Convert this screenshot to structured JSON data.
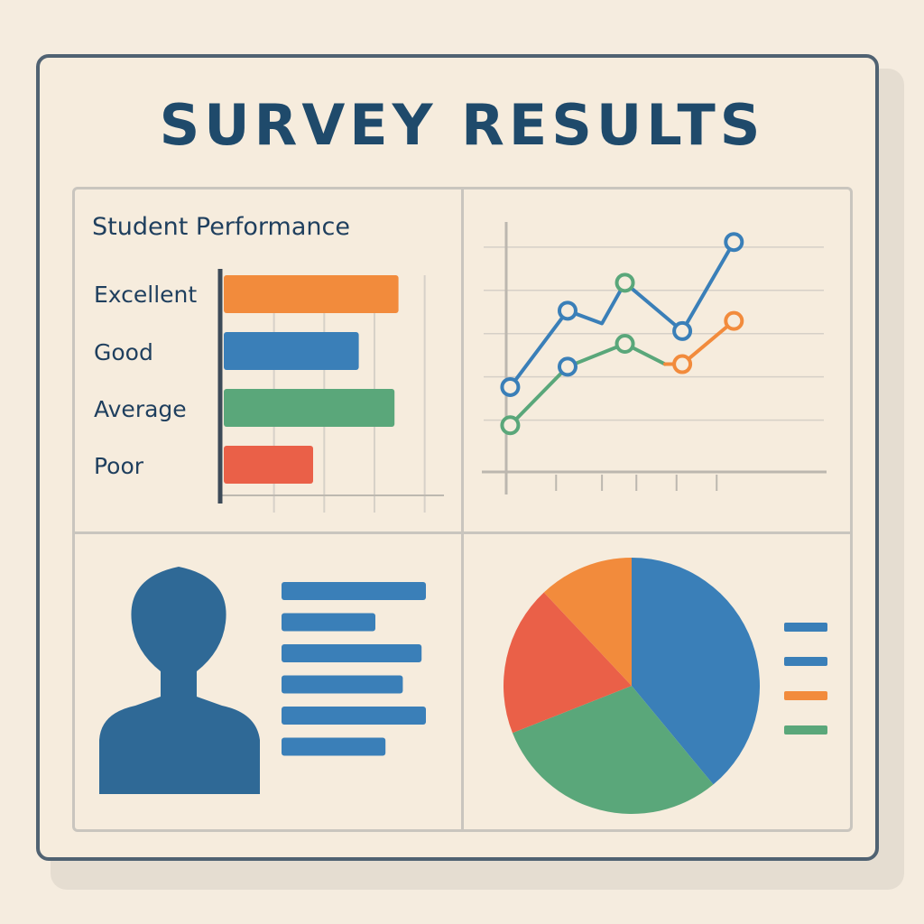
{
  "title": "SURVEY RESULTS",
  "colors": {
    "orange": "#f28b3c",
    "blue": "#3a7fb8",
    "green": "#5aa77a",
    "red": "#ea6048",
    "navy": "#1f4a6b",
    "avatar": "#2f6996"
  },
  "chart_data": [
    {
      "type": "bar",
      "orientation": "horizontal",
      "title": "Student Performance",
      "categories": [
        "Excellent",
        "Good",
        "Average",
        "Poor"
      ],
      "values": [
        88,
        68,
        86,
        45
      ],
      "xlim": [
        0,
        110
      ],
      "grid": true,
      "bar_colors": [
        "orange",
        "blue",
        "green",
        "red"
      ]
    },
    {
      "type": "line",
      "x": [
        1,
        2,
        3,
        4,
        5,
        6
      ],
      "xlim": [
        0.6,
        6.5
      ],
      "ylim": [
        0,
        100
      ],
      "grid": true,
      "series": [
        {
          "color": "blue",
          "points": [
            [
              1,
              33
            ],
            [
              2,
              63
            ],
            [
              2.6,
              58
            ],
            [
              3,
              74
            ],
            [
              4,
              55
            ],
            [
              4.9,
              90
            ]
          ]
        },
        {
          "color": "green",
          "points": [
            [
              1,
              18
            ],
            [
              2,
              41
            ],
            [
              3,
              50
            ],
            [
              3.7,
              42
            ]
          ]
        },
        {
          "color": "orange",
          "points": [
            [
              3.7,
              42
            ],
            [
              4,
              42
            ],
            [
              4.9,
              59
            ]
          ]
        }
      ],
      "markers": [
        {
          "x": 1,
          "y": 33,
          "color": "blue"
        },
        {
          "x": 2,
          "y": 63,
          "color": "blue"
        },
        {
          "x": 3,
          "y": 74,
          "color": "green"
        },
        {
          "x": 4,
          "y": 55,
          "color": "blue"
        },
        {
          "x": 4.9,
          "y": 90,
          "color": "blue"
        },
        {
          "x": 1,
          "y": 18,
          "color": "green"
        },
        {
          "x": 2,
          "y": 41,
          "color": "blue"
        },
        {
          "x": 3,
          "y": 50,
          "color": "green"
        },
        {
          "x": 4,
          "y": 42,
          "color": "orange"
        },
        {
          "x": 4.9,
          "y": 59,
          "color": "orange"
        }
      ]
    },
    {
      "type": "pie",
      "slices": [
        {
          "value": 39,
          "color": "blue"
        },
        {
          "value": 30,
          "color": "green"
        },
        {
          "value": 19,
          "color": "red"
        },
        {
          "value": 12,
          "color": "orange"
        }
      ],
      "legend": [
        "blue",
        "blue",
        "orange",
        "green"
      ],
      "legend_placement": "right"
    }
  ],
  "profile": {
    "icon": "person-silhouette-icon",
    "lines": [
      1.0,
      0.65,
      0.97,
      0.84,
      1.0,
      0.72
    ]
  }
}
